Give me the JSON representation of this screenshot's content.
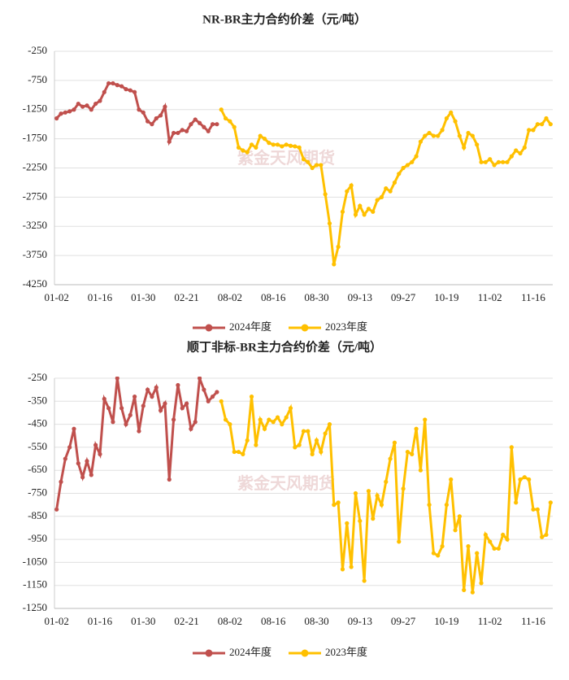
{
  "watermark": "紫金天风期货",
  "chart_data": [
    {
      "type": "line",
      "title": "NR-BR主力合约价差（元/吨）",
      "categories": [
        "01-02",
        null,
        null,
        null,
        null,
        null,
        null,
        null,
        null,
        null,
        "01-16",
        null,
        null,
        null,
        null,
        null,
        null,
        null,
        null,
        null,
        "01-30",
        null,
        null,
        null,
        null,
        null,
        null,
        null,
        null,
        null,
        "02-21",
        null,
        null,
        null,
        null,
        null,
        null,
        null,
        null,
        null,
        "08-02",
        null,
        null,
        null,
        null,
        null,
        null,
        null,
        null,
        null,
        "08-16",
        null,
        null,
        null,
        null,
        null,
        null,
        null,
        null,
        null,
        "08-30",
        null,
        null,
        null,
        null,
        null,
        null,
        null,
        null,
        null,
        "09-13",
        null,
        null,
        null,
        null,
        null,
        null,
        null,
        null,
        null,
        "09-27",
        null,
        null,
        null,
        null,
        null,
        null,
        null,
        null,
        null,
        "10-19",
        null,
        null,
        null,
        null,
        null,
        null,
        null,
        null,
        null,
        "11-02",
        null,
        null,
        null,
        null,
        null,
        null,
        null,
        null,
        null,
        "11-16",
        null,
        null,
        null,
        null
      ],
      "series": [
        {
          "name": "2024年度",
          "color": "#c0504d",
          "values": [
            -1400,
            -1320,
            -1300,
            -1280,
            -1250,
            -1150,
            -1200,
            -1180,
            -1250,
            -1150,
            -1100,
            -950,
            -800,
            -800,
            -830,
            -850,
            -900,
            -920,
            -950,
            -1250,
            -1300,
            -1450,
            -1500,
            -1400,
            -1350,
            -1200,
            -1800,
            -1650,
            -1650,
            -1600,
            -1620,
            -1500,
            -1420,
            -1480,
            -1550,
            -1620,
            -1500,
            -1500,
            null,
            null,
            null,
            null,
            null,
            null,
            null,
            null,
            null,
            null,
            null,
            null,
            null,
            null,
            null,
            null,
            null,
            null,
            null,
            null,
            null,
            null,
            null,
            null,
            null,
            null,
            null,
            null,
            null,
            null,
            null,
            null,
            null,
            null,
            null,
            null,
            null,
            null,
            null,
            null,
            null,
            null,
            null,
            null,
            null,
            null,
            null,
            null,
            null,
            null,
            null,
            null,
            null,
            null,
            null,
            null,
            null,
            null,
            null,
            null,
            null,
            null,
            null,
            null,
            null,
            null,
            null,
            null,
            null,
            null,
            null,
            null,
            null,
            null,
            null,
            null,
            null
          ]
        },
        {
          "name": "2023年度",
          "color": "#ffc000",
          "values": [
            null,
            null,
            null,
            null,
            null,
            null,
            null,
            null,
            null,
            null,
            null,
            null,
            null,
            null,
            null,
            null,
            null,
            null,
            null,
            null,
            null,
            null,
            null,
            null,
            null,
            null,
            null,
            null,
            null,
            null,
            null,
            null,
            null,
            null,
            null,
            null,
            null,
            null,
            -1250,
            -1400,
            -1450,
            -1550,
            -1900,
            -1950,
            -1980,
            -1850,
            -1900,
            -1700,
            -1750,
            -1820,
            -1850,
            -1850,
            -1880,
            -1850,
            -1870,
            -1880,
            -1900,
            -2100,
            -2150,
            -2250,
            -2200,
            -2200,
            -2700,
            -3200,
            -3900,
            -3600,
            -3000,
            -2650,
            -2550,
            -3050,
            -2900,
            -3050,
            -2950,
            -3000,
            -2800,
            -2750,
            -2600,
            -2650,
            -2500,
            -2350,
            -2250,
            -2200,
            -2150,
            -2050,
            -1800,
            -1700,
            -1650,
            -1700,
            -1700,
            -1600,
            -1400,
            -1300,
            -1450,
            -1700,
            -1900,
            -1650,
            -1700,
            -1850,
            -2150,
            -2150,
            -2100,
            -2200,
            -2150,
            -2150,
            -2150,
            -2050,
            -1950,
            -2000,
            -1900,
            -1600,
            -1600,
            -1500,
            -1500,
            -1400,
            -1500
          ]
        }
      ],
      "ylim": [
        -4250,
        -250
      ],
      "yticks": [
        -250,
        -750,
        -1250,
        -1750,
        -2250,
        -2750,
        -3250,
        -3750,
        -4250
      ],
      "grid": true,
      "legend": "bottom"
    },
    {
      "type": "line",
      "title": "顺丁非标-BR主力合约价差（元/吨）",
      "categories": [
        "01-02",
        null,
        null,
        null,
        null,
        null,
        null,
        null,
        null,
        null,
        "01-16",
        null,
        null,
        null,
        null,
        null,
        null,
        null,
        null,
        null,
        "01-30",
        null,
        null,
        null,
        null,
        null,
        null,
        null,
        null,
        null,
        "02-21",
        null,
        null,
        null,
        null,
        null,
        null,
        null,
        null,
        null,
        "08-02",
        null,
        null,
        null,
        null,
        null,
        null,
        null,
        null,
        null,
        "08-16",
        null,
        null,
        null,
        null,
        null,
        null,
        null,
        null,
        null,
        "08-30",
        null,
        null,
        null,
        null,
        null,
        null,
        null,
        null,
        null,
        "09-13",
        null,
        null,
        null,
        null,
        null,
        null,
        null,
        null,
        null,
        "09-27",
        null,
        null,
        null,
        null,
        null,
        null,
        null,
        null,
        null,
        "10-19",
        null,
        null,
        null,
        null,
        null,
        null,
        null,
        null,
        null,
        "11-02",
        null,
        null,
        null,
        null,
        null,
        null,
        null,
        null,
        null,
        "11-16",
        null,
        null,
        null,
        null
      ],
      "series": [
        {
          "name": "2024年度",
          "color": "#c0504d",
          "values": [
            -820,
            -700,
            -600,
            -550,
            -470,
            -620,
            -680,
            -610,
            -670,
            -540,
            -580,
            -340,
            -380,
            -440,
            -250,
            -380,
            -450,
            -410,
            -330,
            -480,
            -370,
            -300,
            -330,
            -290,
            -390,
            -360,
            -690,
            -430,
            -280,
            -380,
            -360,
            -470,
            -440,
            -250,
            -300,
            -350,
            -330,
            -310,
            null,
            null,
            null,
            null,
            null,
            null,
            null,
            null,
            null,
            null,
            null,
            null,
            null,
            null,
            null,
            null,
            null,
            null,
            null,
            null,
            null,
            null,
            null,
            null,
            null,
            null,
            null,
            null,
            null,
            null,
            null,
            null,
            null,
            null,
            null,
            null,
            null,
            null,
            null,
            null,
            null,
            null,
            null,
            null,
            null,
            null,
            null,
            null,
            null,
            null,
            null,
            null,
            null,
            null,
            null,
            null,
            null,
            null,
            null,
            null,
            null,
            null,
            null,
            null,
            null,
            null,
            null,
            null,
            null,
            null,
            null,
            null,
            null,
            null,
            null,
            null,
            null
          ]
        },
        {
          "name": "2023年度",
          "color": "#ffc000",
          "values": [
            null,
            null,
            null,
            null,
            null,
            null,
            null,
            null,
            null,
            null,
            null,
            null,
            null,
            null,
            null,
            null,
            null,
            null,
            null,
            null,
            null,
            null,
            null,
            null,
            null,
            null,
            null,
            null,
            null,
            null,
            null,
            null,
            null,
            null,
            null,
            null,
            null,
            null,
            -350,
            -430,
            -450,
            -570,
            -570,
            -580,
            -520,
            -330,
            -540,
            -430,
            -470,
            -430,
            -440,
            -420,
            -450,
            -420,
            -380,
            -550,
            -540,
            -480,
            -480,
            -580,
            -520,
            -570,
            -490,
            -450,
            -800,
            -790,
            -1080,
            -880,
            -1070,
            -750,
            -870,
            -1130,
            -740,
            -860,
            -760,
            -800,
            -700,
            -600,
            -530,
            -960,
            -730,
            -570,
            -580,
            -470,
            -650,
            -430,
            -800,
            -1010,
            -1020,
            -980,
            -800,
            -690,
            -910,
            -850,
            -1170,
            -980,
            -1180,
            -1010,
            -1140,
            -930,
            -960,
            -990,
            -990,
            -930,
            -950,
            -550,
            -790,
            -690,
            -680,
            -690,
            -820,
            -820,
            -940,
            -930,
            -790
          ]
        }
      ],
      "ylim": [
        -1250,
        -250
      ],
      "yticks": [
        -250,
        -350,
        -450,
        -550,
        -650,
        -750,
        -850,
        -950,
        -1050,
        -1150,
        -1250
      ],
      "grid": true,
      "legend": "bottom"
    }
  ]
}
